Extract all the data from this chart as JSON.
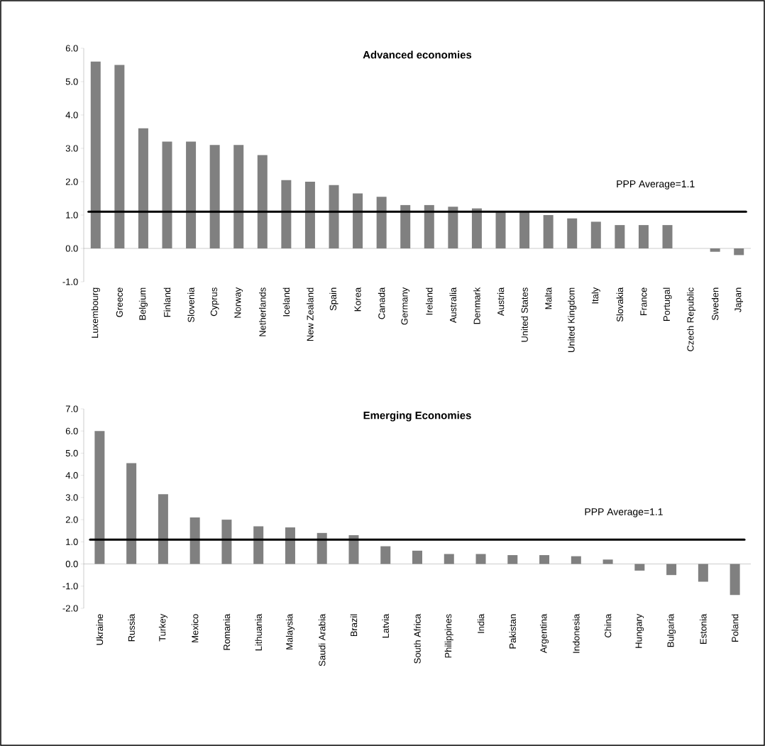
{
  "chart_data": [
    {
      "type": "bar",
      "title": "Advanced economies",
      "categories": [
        "Luxembourg",
        "Greece",
        "Belgium",
        "Finland",
        "Slovenia",
        "Cyprus",
        "Norway",
        "Netherlands",
        "Iceland",
        "New Zealand",
        "Spain",
        "Korea",
        "Canada",
        "Germany",
        "Ireland",
        "Australia",
        "Denmark",
        "Austria",
        "United States",
        "Malta",
        "United Kingdom",
        "Italy",
        "Slovakia",
        "France",
        "Portugal",
        "Czech Republic",
        "Sweden",
        "Japan"
      ],
      "values": [
        5.6,
        5.5,
        3.6,
        3.2,
        3.2,
        3.1,
        3.1,
        2.8,
        2.05,
        2.0,
        1.9,
        1.65,
        1.55,
        1.3,
        1.3,
        1.25,
        1.2,
        1.1,
        1.1,
        1.0,
        0.9,
        0.8,
        0.7,
        0.7,
        0.7,
        0.0,
        -0.1,
        -0.2
      ],
      "color": "#808080",
      "ylim": [
        -1,
        6
      ],
      "yticks": [
        {
          "value": -1,
          "label": "-1.0"
        },
        {
          "value": 0,
          "label": "0.0"
        },
        {
          "value": 1,
          "label": "1.0"
        },
        {
          "value": 2,
          "label": "2.0"
        },
        {
          "value": 3,
          "label": "3.0"
        },
        {
          "value": 4,
          "label": "4.0"
        },
        {
          "value": 5,
          "label": "5.0"
        },
        {
          "value": 6,
          "label": "6.0"
        }
      ],
      "ref_lines": [
        {
          "axis": "y",
          "value": 1.1,
          "label": "PPP Average=1.1",
          "color": "#000000"
        }
      ]
    },
    {
      "type": "bar",
      "title": "Emerging Economies",
      "categories": [
        "Ukraine",
        "Russia",
        "Turkey",
        "Mexico",
        "Romania",
        "Lithuania",
        "Malaysia",
        "Saudi Arabia",
        "Brazil",
        "Latvia",
        "South Africa",
        "Philippines",
        "India",
        "Pakistan",
        "Argentina",
        "Indonesia",
        "China",
        "Hungary",
        "Bulgaria",
        "Estonia",
        "Poland"
      ],
      "values": [
        6.0,
        4.55,
        3.15,
        2.1,
        2.0,
        1.7,
        1.65,
        1.4,
        1.3,
        0.8,
        0.6,
        0.45,
        0.45,
        0.4,
        0.4,
        0.35,
        0.2,
        -0.3,
        -0.5,
        -0.8,
        -1.4
      ],
      "color": "#808080",
      "ylim": [
        -2,
        7
      ],
      "yticks": [
        {
          "value": -2,
          "label": "-2.0"
        },
        {
          "value": -1,
          "label": "-1.0"
        },
        {
          "value": 0,
          "label": "0.0"
        },
        {
          "value": 1,
          "label": "1.0"
        },
        {
          "value": 2,
          "label": "2.0"
        },
        {
          "value": 3,
          "label": "3.0"
        },
        {
          "value": 4,
          "label": "4.0"
        },
        {
          "value": 5,
          "label": "5.0"
        },
        {
          "value": 6,
          "label": "6.0"
        },
        {
          "value": 7,
          "label": "7.0"
        }
      ],
      "ref_lines": [
        {
          "axis": "y",
          "value": 1.1,
          "label": "PPP Average=1.1",
          "color": "#000000"
        }
      ]
    }
  ]
}
